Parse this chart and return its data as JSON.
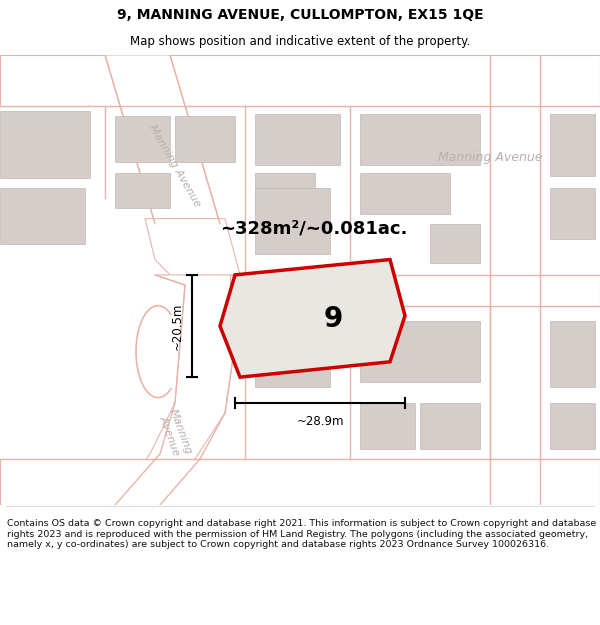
{
  "title": "9, MANNING AVENUE, CULLOMPTON, EX15 1QE",
  "subtitle": "Map shows position and indicative extent of the property.",
  "footer": "Contains OS data © Crown copyright and database right 2021. This information is subject to Crown copyright and database rights 2023 and is reproduced with the permission of HM Land Registry. The polygons (including the associated geometry, namely x, y co-ordinates) are subject to Crown copyright and database rights 2023 Ordnance Survey 100026316.",
  "area_label": "~328m²/~0.081ac.",
  "property_number": "9",
  "dim_width": "~28.9m",
  "dim_height": "~20.5m",
  "map_bg": "#f2eeeb",
  "road_fill": "#ffffff",
  "road_line_color": "#e8b4aa",
  "building_face": "#d4cdc9",
  "building_edge": "#c0b8b4",
  "prop_edge": "#cc0000",
  "prop_fill": "#eae6e2",
  "street_color": "#c0b8b4",
  "title_fontsize": 10,
  "subtitle_fontsize": 8.5,
  "footer_fontsize": 6.8
}
